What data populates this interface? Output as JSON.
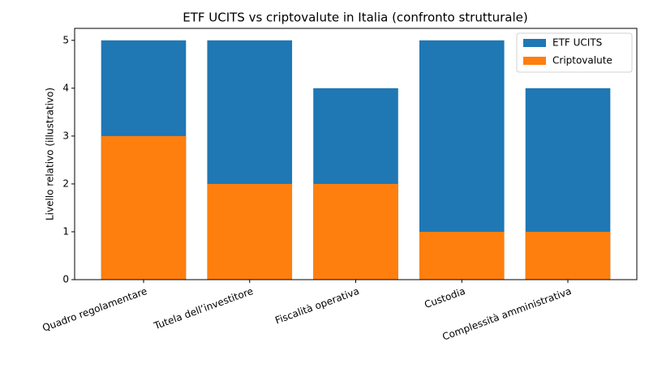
{
  "chart_data": {
    "type": "bar",
    "title": "ETF UCITS vs criptovalute in Italia (confronto strutturale)",
    "y_label": "Livello relativo (illustrativo)",
    "categories": [
      "Quadro regolamentare",
      "Tutela dell’investitore",
      "Fiscalità operativa",
      "Custodia",
      "Complessità amministrativa"
    ],
    "series": [
      {
        "name": "ETF UCITS",
        "color": "#1f77b4",
        "values": [
          5,
          5,
          4,
          5,
          4
        ]
      },
      {
        "name": "Criptovalute",
        "color": "#ff7f0e",
        "values": [
          3,
          2,
          2,
          1,
          1
        ]
      }
    ],
    "ylim": [
      0,
      5.25
    ],
    "yticks": [
      0,
      1,
      2,
      3,
      4,
      5
    ],
    "legend": "upper right"
  }
}
